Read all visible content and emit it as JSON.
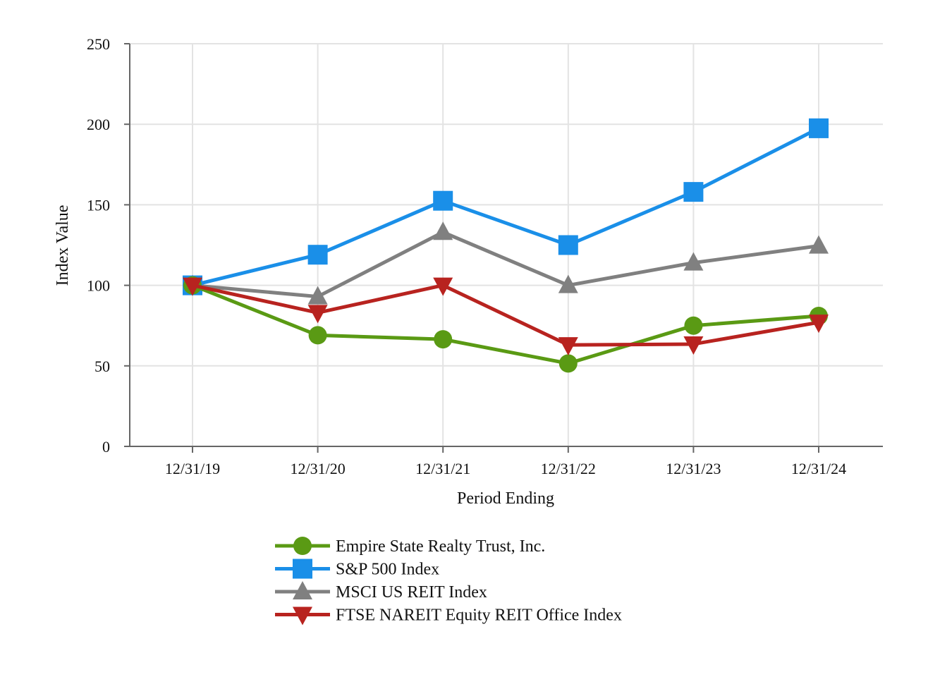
{
  "chart_data": {
    "type": "line",
    "title": "",
    "xlabel": "Period Ending",
    "ylabel": "Index Value",
    "categories": [
      "12/31/19",
      "12/31/20",
      "12/31/21",
      "12/31/22",
      "12/31/23",
      "12/31/24"
    ],
    "ylim": [
      0,
      250
    ],
    "yticks": [
      0,
      50,
      100,
      150,
      200,
      250
    ],
    "grid": true,
    "legend_position": "bottom",
    "series": [
      {
        "name": "Empire State Realty Trust, Inc.",
        "color": "#5a9a14",
        "marker": "circle",
        "values": [
          100,
          69,
          66.5,
          51.5,
          75,
          81
        ]
      },
      {
        "name": "S&P 500 Index",
        "color": "#1a8fe8",
        "marker": "square",
        "values": [
          100,
          119,
          152.5,
          125,
          158,
          197.5
        ]
      },
      {
        "name": "MSCI US REIT Index",
        "color": "#808080",
        "marker": "triangle-up",
        "values": [
          100,
          93,
          133,
          100,
          114,
          124.5
        ]
      },
      {
        "name": "FTSE NAREIT Equity REIT Office Index",
        "color": "#b8231f",
        "marker": "triangle-down",
        "values": [
          100,
          83,
          100,
          63,
          63.5,
          77
        ]
      }
    ]
  }
}
